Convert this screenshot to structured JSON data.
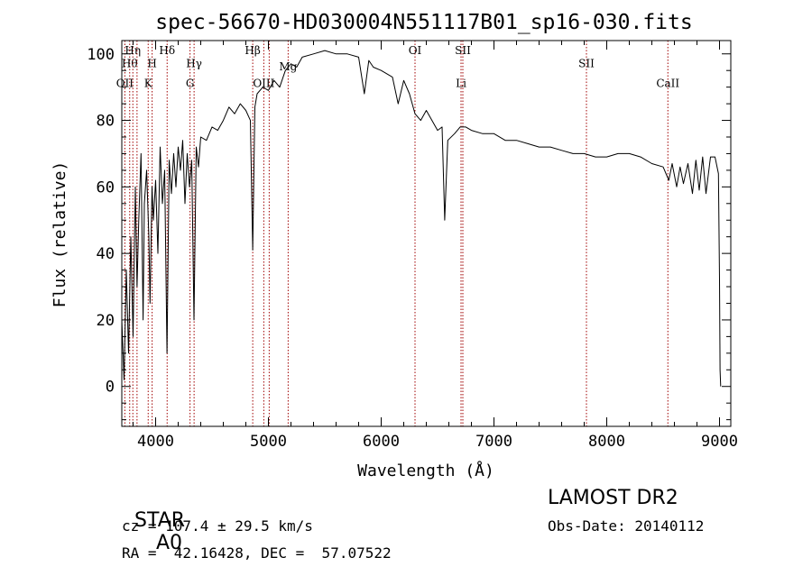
{
  "chart_data": {
    "type": "line",
    "title": "spec-56670-HD030004N551117B01_sp16-030.fits",
    "xlabel": "Wavelength (Å)",
    "ylabel": "Flux (relative)",
    "xlim": [
      3700,
      9100
    ],
    "ylim": [
      -12,
      104
    ],
    "xticks": [
      4000,
      5000,
      6000,
      7000,
      8000,
      9000
    ],
    "yticks": [
      0,
      20,
      40,
      60,
      80,
      100
    ],
    "grid": false,
    "line_color": "#000000",
    "marker_color": "#a00000",
    "series": [
      {
        "x": [
          3700,
          3720,
          3740,
          3760,
          3780,
          3800,
          3820,
          3835,
          3850,
          3870,
          3889,
          3900,
          3920,
          3940,
          3950,
          3968,
          3980,
          4000,
          4020,
          4040,
          4060,
          4080,
          4101,
          4120,
          4140,
          4160,
          4180,
          4200,
          4220,
          4240,
          4260,
          4280,
          4300,
          4320,
          4340,
          4360,
          4380,
          4400,
          4450,
          4500,
          4550,
          4600,
          4650,
          4700,
          4750,
          4800,
          4840,
          4861,
          4880,
          4900,
          4950,
          5000,
          5050,
          5100,
          5150,
          5200,
          5250,
          5300,
          5400,
          5500,
          5600,
          5700,
          5800,
          5850,
          5890,
          5930,
          6000,
          6100,
          6150,
          6200,
          6250,
          6300,
          6350,
          6400,
          6450,
          6500,
          6540,
          6563,
          6590,
          6650,
          6700,
          6750,
          6800,
          6900,
          7000,
          7100,
          7200,
          7300,
          7400,
          7500,
          7600,
          7700,
          7800,
          7900,
          8000,
          8100,
          8200,
          8300,
          8400,
          8500,
          8550,
          8580,
          8620,
          8650,
          8680,
          8720,
          8760,
          8790,
          8820,
          8850,
          8880,
          8920,
          8960,
          8990,
          9000,
          9005,
          9010
        ],
        "y": [
          20,
          2,
          35,
          10,
          45,
          15,
          60,
          30,
          50,
          70,
          20,
          55,
          65,
          45,
          25,
          60,
          50,
          62,
          40,
          72,
          55,
          65,
          10,
          68,
          58,
          70,
          60,
          72,
          65,
          74,
          55,
          70,
          60,
          68,
          20,
          72,
          66,
          75,
          74,
          78,
          77,
          80,
          84,
          82,
          85,
          83,
          80,
          41,
          84,
          88,
          90,
          89,
          92,
          90,
          95,
          97,
          96,
          99,
          100,
          101,
          100,
          100,
          99,
          88,
          98,
          96,
          95,
          93,
          85,
          92,
          88,
          82,
          80,
          83,
          80,
          77,
          78,
          50,
          74,
          76,
          78,
          78,
          77,
          76,
          76,
          74,
          74,
          73,
          72,
          72,
          71,
          70,
          70,
          69,
          69,
          70,
          70,
          69,
          67,
          66,
          62,
          67,
          60,
          66,
          61,
          67,
          58,
          68,
          59,
          69,
          58,
          69,
          69,
          64,
          32,
          5,
          0
        ]
      }
    ],
    "line_marks": [
      {
        "wl": 3727,
        "labels": [
          "OII"
        ],
        "ref": 90
      },
      {
        "wl": 3770,
        "labels": [
          "Hθ"
        ],
        "ref": 96
      },
      {
        "wl": 3798,
        "labels": [
          "Hη"
        ],
        "ref": 100
      },
      {
        "wl": 3835,
        "labels": [],
        "ref": 90
      },
      {
        "wl": 3934,
        "labels": [
          "K"
        ],
        "ref": 90
      },
      {
        "wl": 3969,
        "labels": [
          "H"
        ],
        "ref": 96
      },
      {
        "wl": 4102,
        "labels": [
          "Hδ"
        ],
        "ref": 100
      },
      {
        "wl": 4305,
        "labels": [
          "G"
        ],
        "ref": 90
      },
      {
        "wl": 4341,
        "labels": [
          "Hγ"
        ],
        "ref": 96
      },
      {
        "wl": 4861,
        "labels": [
          "Hβ"
        ],
        "ref": 100
      },
      {
        "wl": 4959,
        "labels": [
          "OIII"
        ],
        "ref": 90
      },
      {
        "wl": 5007,
        "labels": [],
        "ref": 90
      },
      {
        "wl": 5175,
        "labels": [
          "Mg"
        ],
        "ref": 95
      },
      {
        "wl": 6300,
        "labels": [
          "OI"
        ],
        "ref": 100
      },
      {
        "wl": 6708,
        "labels": [
          "Li"
        ],
        "ref": 90
      },
      {
        "wl": 6724,
        "labels": [
          "SII"
        ],
        "ref": 100
      },
      {
        "wl": 7820,
        "labels": [
          "SII"
        ],
        "ref": 96
      },
      {
        "wl": 8542,
        "labels": [
          "CaII"
        ],
        "ref": 90
      }
    ]
  },
  "info": {
    "class_label": "STAR",
    "subclass": "A0",
    "survey": "LAMOST DR2",
    "cz": "cz = 107.4 ± 29.5 km/s",
    "obs_date": "Obs-Date: 20140112",
    "coords": "RA =  42.16428, DEC =  57.07522"
  }
}
